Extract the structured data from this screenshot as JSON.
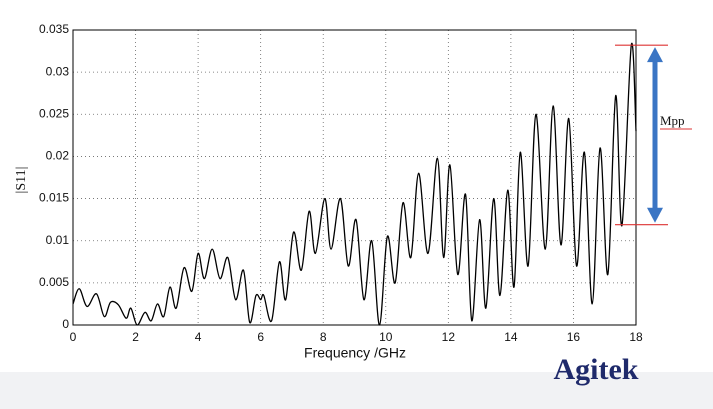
{
  "chart_data": {
    "type": "line",
    "x_label": "Frequency /GHz",
    "y_label": "|S11|",
    "x": [
      0,
      0.2,
      0.45,
      0.75,
      1.0,
      1.2,
      1.45,
      1.7,
      1.85,
      2.05,
      2.3,
      2.5,
      2.7,
      2.9,
      3.1,
      3.3,
      3.55,
      3.8,
      4.0,
      4.2,
      4.45,
      4.7,
      4.95,
      5.2,
      5.45,
      5.65,
      5.85,
      6.0,
      6.1,
      6.35,
      6.6,
      6.8,
      7.05,
      7.3,
      7.55,
      7.75,
      8.05,
      8.25,
      8.55,
      8.8,
      9.05,
      9.3,
      9.55,
      9.8,
      10.05,
      10.3,
      10.55,
      10.8,
      11.05,
      11.35,
      11.65,
      11.85,
      12.05,
      12.3,
      12.55,
      12.75,
      13.0,
      13.2,
      13.45,
      13.65,
      13.9,
      14.1,
      14.3,
      14.55,
      14.8,
      15.1,
      15.35,
      15.6,
      15.85,
      16.1,
      16.35,
      16.6,
      16.85,
      17.1,
      17.35,
      17.55,
      17.85,
      18.0
    ],
    "series": [
      {
        "color": "#000000",
        "values": [
          0.0025,
          0.0043,
          0.0022,
          0.0037,
          0.001,
          0.0027,
          0.0024,
          0.0008,
          0.002,
          0.0,
          0.0015,
          0.0005,
          0.0025,
          0.001,
          0.0045,
          0.002,
          0.0068,
          0.004,
          0.0085,
          0.0055,
          0.009,
          0.0055,
          0.008,
          0.003,
          0.0065,
          0.0003,
          0.0035,
          0.003,
          0.0035,
          0.0005,
          0.0075,
          0.003,
          0.011,
          0.0065,
          0.0135,
          0.0085,
          0.015,
          0.009,
          0.015,
          0.007,
          0.0125,
          0.003,
          0.01,
          0.0,
          0.0105,
          0.005,
          0.0145,
          0.008,
          0.018,
          0.0085,
          0.0198,
          0.008,
          0.019,
          0.006,
          0.0155,
          0.0005,
          0.0125,
          0.002,
          0.015,
          0.0035,
          0.016,
          0.0045,
          0.0205,
          0.007,
          0.025,
          0.009,
          0.026,
          0.0095,
          0.0245,
          0.007,
          0.0205,
          0.0025,
          0.021,
          0.006,
          0.0272,
          0.0118,
          0.0332,
          0.023
        ]
      }
    ],
    "xlim": [
      0,
      18
    ],
    "xticks": [
      0,
      2,
      4,
      6,
      8,
      10,
      12,
      14,
      16,
      18
    ],
    "ylim": [
      0,
      0.035
    ],
    "yticks": [
      0,
      0.005,
      0.01,
      0.015,
      0.02,
      0.025,
      0.03,
      0.035
    ],
    "grid": true,
    "reference_lines": [
      0.0332,
      0.0119
    ],
    "annotation": "Mpp"
  },
  "logo": "Agitek"
}
